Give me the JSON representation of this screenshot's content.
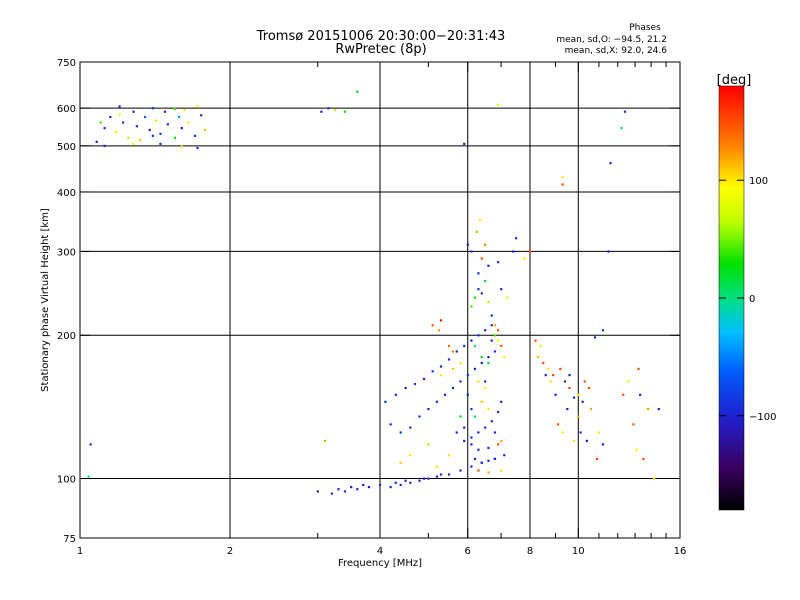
{
  "chart_data": {
    "type": "scatter",
    "title": "Tromsø 20151006 20:30:00−20:31:43",
    "subtitle": "RwPretec (8p)",
    "stats": {
      "heading": "Phases",
      "line1": "mean, sd,O: −94.5, 21.2",
      "line2": "mean, sd,X:  92.0, 24.6"
    },
    "xlabel": "Frequency [MHz]",
    "ylabel": "Stationary phase Virtual Height [km]",
    "x_scale": "log",
    "y_scale": "log",
    "xlim": [
      1,
      16
    ],
    "ylim": [
      75,
      750
    ],
    "xticks": [
      {
        "value": 1,
        "label": "1"
      },
      {
        "value": 2,
        "label": "2"
      },
      {
        "value": 4,
        "label": "4"
      },
      {
        "value": 6,
        "label": "6"
      },
      {
        "value": 8,
        "label": "8"
      },
      {
        "value": 10,
        "label": "10"
      },
      {
        "value": 16,
        "label": "16"
      }
    ],
    "xminor": [
      3,
      5,
      7,
      9,
      11,
      12,
      13,
      14,
      15
    ],
    "yticks": [
      {
        "value": 75,
        "label": "75"
      },
      {
        "value": 100,
        "label": "100"
      },
      {
        "value": 200,
        "label": "200"
      },
      {
        "value": 300,
        "label": "300"
      },
      {
        "value": 400,
        "label": "400"
      },
      {
        "value": 500,
        "label": "500"
      },
      {
        "value": 600,
        "label": "600"
      },
      {
        "value": 750,
        "label": "750"
      }
    ],
    "xgrid": [
      2,
      4,
      6,
      8,
      10
    ],
    "ygrid": [
      100,
      200,
      300,
      400,
      500,
      600
    ],
    "grid": true,
    "colorbar": {
      "label": "[deg]",
      "range": [
        -180,
        180
      ],
      "ticks": [
        {
          "value": 100,
          "label": "100"
        },
        {
          "value": 0,
          "label": "0"
        },
        {
          "value": -100,
          "label": "−100"
        }
      ]
    },
    "points": [
      [
        1.08,
        510,
        -100
      ],
      [
        1.1,
        560,
        40
      ],
      [
        1.12,
        545,
        -90
      ],
      [
        1.15,
        575,
        -95
      ],
      [
        1.18,
        535,
        90
      ],
      [
        1.2,
        605,
        -100
      ],
      [
        1.22,
        560,
        -85
      ],
      [
        1.25,
        520,
        60
      ],
      [
        1.28,
        590,
        -100
      ],
      [
        1.3,
        550,
        -90
      ],
      [
        1.32,
        515,
        110
      ],
      [
        1.35,
        575,
        -60
      ],
      [
        1.38,
        540,
        -100
      ],
      [
        1.4,
        600,
        -95
      ],
      [
        1.42,
        565,
        100
      ],
      [
        1.45,
        530,
        -80
      ],
      [
        1.48,
        590,
        -100
      ],
      [
        1.5,
        555,
        -90
      ],
      [
        1.55,
        520,
        30
      ],
      [
        1.58,
        575,
        -40
      ],
      [
        1.6,
        545,
        -100
      ],
      [
        1.62,
        595,
        100
      ],
      [
        1.65,
        560,
        80
      ],
      [
        1.7,
        525,
        -90
      ],
      [
        1.72,
        605,
        100
      ],
      [
        1.75,
        580,
        -95
      ],
      [
        1.78,
        540,
        110
      ],
      [
        1.12,
        500,
        -100
      ],
      [
        1.28,
        505,
        90
      ],
      [
        1.45,
        505,
        -95
      ],
      [
        1.6,
        498,
        100
      ],
      [
        1.72,
        495,
        -90
      ],
      [
        1.2,
        582,
        100
      ],
      [
        1.4,
        525,
        -90
      ],
      [
        1.55,
        598,
        40
      ],
      [
        3.05,
        590,
        -100
      ],
      [
        3.15,
        600,
        -95
      ],
      [
        3.25,
        595,
        60
      ],
      [
        3.4,
        590,
        30
      ],
      [
        3.6,
        650,
        20
      ],
      [
        5.9,
        505,
        -100
      ],
      [
        6.9,
        610,
        100
      ],
      [
        9.3,
        430,
        100
      ],
      [
        9.3,
        415,
        150
      ],
      [
        11.6,
        460,
        -100
      ],
      [
        12.4,
        590,
        -95
      ],
      [
        12.2,
        545,
        0
      ],
      [
        11.5,
        300,
        -100
      ],
      [
        10.8,
        198,
        -100
      ],
      [
        11.2,
        205,
        -90
      ],
      [
        10.2,
        145,
        -100
      ],
      [
        10.1,
        125,
        -95
      ],
      [
        10.0,
        135,
        120
      ],
      [
        10.5,
        155,
        150
      ],
      [
        9.6,
        165,
        -100
      ],
      [
        9.8,
        120,
        100
      ],
      [
        1.05,
        118,
        -100
      ],
      [
        1.04,
        101,
        0
      ],
      [
        3.1,
        120,
        120
      ],
      [
        3.0,
        94,
        -100
      ],
      [
        3.2,
        93,
        -100
      ],
      [
        3.4,
        94,
        -95
      ],
      [
        3.6,
        95,
        -100
      ],
      [
        3.8,
        96,
        -100
      ],
      [
        4.0,
        97,
        -90
      ],
      [
        4.2,
        96,
        -100
      ],
      [
        4.4,
        97,
        -95
      ],
      [
        4.6,
        98,
        -100
      ],
      [
        4.8,
        99,
        -100
      ],
      [
        5.0,
        100,
        -90
      ],
      [
        5.2,
        101,
        -100
      ],
      [
        5.5,
        102,
        -95
      ],
      [
        5.8,
        104,
        -100
      ],
      [
        6.1,
        106,
        -100
      ],
      [
        6.4,
        108,
        -90
      ],
      [
        6.8,
        110,
        -100
      ],
      [
        7.1,
        112,
        -95
      ],
      [
        3.3,
        95,
        -100
      ],
      [
        3.5,
        96,
        -100
      ],
      [
        3.7,
        97,
        -100
      ],
      [
        4.3,
        98,
        -100
      ],
      [
        4.5,
        99,
        -100
      ],
      [
        4.9,
        100,
        -100
      ],
      [
        5.3,
        102,
        -100
      ],
      [
        4.1,
        145,
        -100
      ],
      [
        4.3,
        150,
        -95
      ],
      [
        4.5,
        155,
        -100
      ],
      [
        4.7,
        158,
        -90
      ],
      [
        4.9,
        162,
        -100
      ],
      [
        5.1,
        168,
        -95
      ],
      [
        5.3,
        172,
        -100
      ],
      [
        5.5,
        178,
        -90
      ],
      [
        5.7,
        185,
        -100
      ],
      [
        5.9,
        190,
        -95
      ],
      [
        6.1,
        195,
        -100
      ],
      [
        6.3,
        200,
        -90
      ],
      [
        6.5,
        205,
        -100
      ],
      [
        6.7,
        210,
        -95
      ],
      [
        4.2,
        130,
        -100
      ],
      [
        4.4,
        125,
        -90
      ],
      [
        4.6,
        128,
        -100
      ],
      [
        4.8,
        135,
        -95
      ],
      [
        5.0,
        140,
        -100
      ],
      [
        5.2,
        145,
        -90
      ],
      [
        5.4,
        150,
        -100
      ],
      [
        5.6,
        155,
        -95
      ],
      [
        5.8,
        160,
        -100
      ],
      [
        6.0,
        165,
        -90
      ],
      [
        6.2,
        170,
        -100
      ],
      [
        6.4,
        175,
        -95
      ],
      [
        6.6,
        180,
        -100
      ],
      [
        6.8,
        185,
        -90
      ],
      [
        5.9,
        120,
        -100
      ],
      [
        6.1,
        122,
        -95
      ],
      [
        6.3,
        125,
        -100
      ],
      [
        6.5,
        128,
        -90
      ],
      [
        6.7,
        132,
        -100
      ],
      [
        6.9,
        138,
        -95
      ],
      [
        7.0,
        145,
        -100
      ],
      [
        6.2,
        110,
        -100
      ],
      [
        6.4,
        108,
        -90
      ],
      [
        6.6,
        109,
        -100
      ],
      [
        6.8,
        110,
        -95
      ],
      [
        6.3,
        104,
        150
      ],
      [
        6.6,
        103,
        120
      ],
      [
        7.0,
        104,
        100
      ],
      [
        5.5,
        112,
        100
      ],
      [
        5.0,
        118,
        60
      ],
      [
        4.6,
        112,
        100
      ],
      [
        4.4,
        108,
        110
      ],
      [
        5.2,
        106,
        100
      ],
      [
        5.1,
        210,
        150
      ],
      [
        5.3,
        215,
        170
      ],
      [
        5.25,
        205,
        120
      ],
      [
        5.5,
        190,
        140
      ],
      [
        5.6,
        185,
        130
      ],
      [
        5.3,
        165,
        100
      ],
      [
        5.6,
        170,
        110
      ],
      [
        5.8,
        175,
        100
      ],
      [
        6.1,
        230,
        40
      ],
      [
        6.2,
        240,
        30
      ],
      [
        6.3,
        250,
        -100
      ],
      [
        6.4,
        245,
        -90
      ],
      [
        6.5,
        260,
        20
      ],
      [
        6.6,
        235,
        60
      ],
      [
        6.7,
        220,
        100
      ],
      [
        6.8,
        210,
        120
      ],
      [
        6.9,
        205,
        150
      ],
      [
        6.3,
        270,
        -100
      ],
      [
        6.4,
        290,
        150
      ],
      [
        6.5,
        310,
        130
      ],
      [
        6.25,
        330,
        120
      ],
      [
        6.35,
        350,
        100
      ],
      [
        6.1,
        300,
        -90
      ],
      [
        6.0,
        310,
        -100
      ],
      [
        6.6,
        280,
        -100
      ],
      [
        6.9,
        285,
        -95
      ],
      [
        7.4,
        300,
        -100
      ],
      [
        7.5,
        320,
        -90
      ],
      [
        7.8,
        290,
        100
      ],
      [
        8.0,
        300,
        150
      ],
      [
        7.0,
        250,
        -100
      ],
      [
        7.2,
        240,
        100
      ],
      [
        6.2,
        190,
        0
      ],
      [
        6.4,
        180,
        20
      ],
      [
        6.6,
        175,
        10
      ],
      [
        6.3,
        160,
        100
      ],
      [
        6.5,
        155,
        90
      ],
      [
        6.4,
        145,
        110
      ],
      [
        6.6,
        140,
        100
      ],
      [
        6.0,
        150,
        -100
      ],
      [
        6.1,
        140,
        -90
      ],
      [
        6.2,
        135,
        10
      ],
      [
        5.8,
        135,
        30
      ],
      [
        5.9,
        128,
        -100
      ],
      [
        5.7,
        125,
        -100
      ],
      [
        6.1,
        118,
        -100
      ],
      [
        6.3,
        115,
        -95
      ],
      [
        6.6,
        116,
        -100
      ],
      [
        6.9,
        118,
        150
      ],
      [
        7.0,
        120,
        120
      ],
      [
        6.8,
        125,
        -100
      ],
      [
        6.5,
        160,
        -100
      ],
      [
        6.7,
        195,
        -100
      ],
      [
        6.8,
        200,
        40
      ],
      [
        6.9,
        195,
        100
      ],
      [
        7.0,
        190,
        150
      ],
      [
        7.1,
        180,
        100
      ],
      [
        6.7,
        220,
        -90
      ],
      [
        8.2,
        195,
        150
      ],
      [
        8.4,
        190,
        100
      ],
      [
        8.3,
        180,
        110
      ],
      [
        8.5,
        175,
        150
      ],
      [
        8.6,
        165,
        -100
      ],
      [
        8.8,
        160,
        100
      ],
      [
        9.0,
        150,
        -100
      ],
      [
        9.2,
        170,
        150
      ],
      [
        9.4,
        160,
        -100
      ],
      [
        9.6,
        155,
        150
      ],
      [
        9.8,
        148,
        -100
      ],
      [
        8.7,
        170,
        100
      ],
      [
        8.9,
        165,
        150
      ],
      [
        9.5,
        140,
        -100
      ],
      [
        9.1,
        130,
        150
      ],
      [
        9.3,
        125,
        100
      ],
      [
        10.0,
        150,
        100
      ],
      [
        10.3,
        160,
        150
      ],
      [
        10.6,
        140,
        120
      ],
      [
        10.4,
        120,
        -100
      ],
      [
        10.9,
        110,
        150
      ],
      [
        11.0,
        125,
        100
      ],
      [
        11.2,
        118,
        -100
      ],
      [
        12.3,
        150,
        150
      ],
      [
        12.6,
        160,
        100
      ],
      [
        12.9,
        130,
        150
      ],
      [
        13.1,
        115,
        100
      ],
      [
        13.3,
        150,
        -100
      ],
      [
        13.5,
        110,
        150
      ],
      [
        13.8,
        140,
        120
      ],
      [
        14.2,
        100,
        100
      ],
      [
        14.5,
        140,
        -100
      ],
      [
        13.2,
        170,
        150
      ]
    ]
  }
}
